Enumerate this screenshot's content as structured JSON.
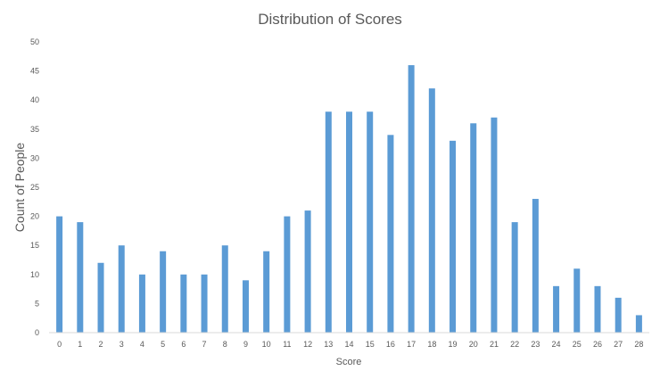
{
  "chart_data": {
    "type": "bar",
    "title": "Distribution of Scores",
    "xlabel": "Score",
    "ylabel": "Count of People",
    "categories": [
      "0",
      "1",
      "2",
      "3",
      "4",
      "5",
      "6",
      "7",
      "8",
      "9",
      "10",
      "11",
      "12",
      "13",
      "14",
      "15",
      "16",
      "17",
      "18",
      "19",
      "20",
      "21",
      "22",
      "23",
      "24",
      "25",
      "26",
      "27",
      "28"
    ],
    "values": [
      20,
      19,
      12,
      15,
      10,
      14,
      10,
      10,
      15,
      9,
      14,
      20,
      21,
      38,
      38,
      38,
      34,
      46,
      42,
      33,
      36,
      37,
      19,
      23,
      8,
      11,
      8,
      6,
      3
    ],
    "ylim": [
      0,
      50
    ],
    "yticks": [
      0,
      5,
      10,
      15,
      20,
      25,
      30,
      35,
      40,
      45,
      50
    ],
    "grid": false,
    "legend": "none",
    "colors": {
      "bar": "#5b9bd5",
      "axis": "#d9d9d9",
      "text": "#595959"
    }
  }
}
